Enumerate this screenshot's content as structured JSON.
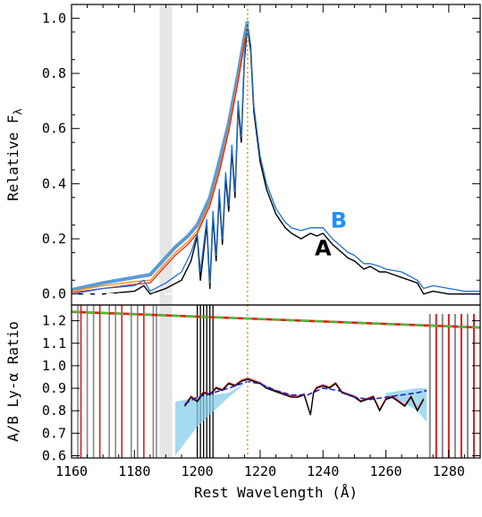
{
  "chart_data": [
    {
      "panel": "top",
      "type": "line",
      "title": "",
      "xlabel": "",
      "ylabel": "Relative F",
      "ylabel_sub": "λ",
      "xlim": [
        1160,
        1290
      ],
      "ylim": [
        -0.04,
        1.05
      ],
      "y_ticks": [
        0.0,
        0.2,
        0.4,
        0.6,
        0.8,
        1.0
      ],
      "y_tick_labels": [
        "0.0",
        "0.2",
        "0.4",
        "0.6",
        "0.8",
        "1.0"
      ],
      "shaded_band": [
        1188,
        1192
      ],
      "vline_x": 1216,
      "zero_line": 0.0,
      "series_labels": [
        {
          "text": "A",
          "x": 1240,
          "y": 0.14,
          "color": "#000000"
        },
        {
          "text": "B",
          "x": 1245,
          "y": 0.24,
          "color": "#1e90ff"
        }
      ],
      "series": [
        {
          "key": "thick_blue",
          "color": "#5b9bd5",
          "x": [
            1160,
            1170,
            1180,
            1185,
            1189,
            1193,
            1197,
            1200,
            1204,
            1207,
            1210,
            1213,
            1215,
            1216
          ],
          "y": [
            0.015,
            0.04,
            0.06,
            0.07,
            0.12,
            0.17,
            0.21,
            0.25,
            0.35,
            0.48,
            0.62,
            0.8,
            0.93,
            0.99
          ]
        },
        {
          "key": "orange",
          "color": "#ff8c00",
          "x": [
            1160,
            1170,
            1180,
            1185,
            1189,
            1193,
            1197,
            1200,
            1204,
            1207,
            1210,
            1213,
            1215,
            1216
          ],
          "y": [
            0.01,
            0.03,
            0.045,
            0.05,
            0.1,
            0.15,
            0.19,
            0.23,
            0.33,
            0.45,
            0.6,
            0.78,
            0.92,
            0.98
          ]
        },
        {
          "key": "red",
          "color": "#e41a1c",
          "x": [
            1160,
            1170,
            1180,
            1185,
            1189,
            1193,
            1197,
            1200,
            1204,
            1207,
            1210,
            1213,
            1215,
            1216
          ],
          "y": [
            0.005,
            0.02,
            0.035,
            0.04,
            0.09,
            0.14,
            0.18,
            0.22,
            0.32,
            0.44,
            0.59,
            0.77,
            0.91,
            0.97
          ]
        },
        {
          "key": "black",
          "color": "#000000",
          "x": [
            1160,
            1170,
            1180,
            1183,
            1185,
            1190,
            1195,
            1198,
            1200,
            1201,
            1203,
            1204,
            1205,
            1206,
            1207,
            1208,
            1209,
            1210,
            1211,
            1212,
            1213,
            1214,
            1215,
            1216,
            1217,
            1218,
            1220,
            1222,
            1225,
            1228,
            1230,
            1233,
            1236,
            1238,
            1240,
            1243,
            1245,
            1248,
            1250,
            1253,
            1255,
            1258,
            1260,
            1265,
            1270,
            1272,
            1275,
            1280,
            1285,
            1290
          ],
          "y": [
            0.0,
            0.0,
            0.01,
            0.03,
            0.0,
            0.02,
            0.05,
            0.12,
            0.21,
            0.05,
            0.25,
            0.02,
            0.28,
            0.12,
            0.36,
            0.18,
            0.42,
            0.3,
            0.52,
            0.35,
            0.68,
            0.55,
            0.85,
            0.97,
            0.88,
            0.66,
            0.48,
            0.38,
            0.29,
            0.24,
            0.22,
            0.2,
            0.22,
            0.21,
            0.22,
            0.18,
            0.16,
            0.13,
            0.12,
            0.09,
            0.1,
            0.08,
            0.08,
            0.06,
            0.04,
            0.0,
            0.01,
            0.0,
            0.0,
            0.0
          ]
        },
        {
          "key": "thin_blue",
          "color": "#1e6fd0",
          "x": [
            1160,
            1170,
            1180,
            1183,
            1185,
            1190,
            1195,
            1198,
            1200,
            1201,
            1203,
            1204,
            1205,
            1206,
            1207,
            1208,
            1209,
            1210,
            1211,
            1212,
            1213,
            1214,
            1215,
            1216,
            1217,
            1218,
            1220,
            1222,
            1225,
            1228,
            1230,
            1233,
            1236,
            1238,
            1240,
            1243,
            1245,
            1248,
            1250,
            1253,
            1255,
            1258,
            1260,
            1265,
            1270,
            1272,
            1275,
            1280,
            1285,
            1290
          ],
          "y": [
            0.0,
            0.02,
            0.03,
            0.05,
            0.01,
            0.04,
            0.08,
            0.15,
            0.22,
            0.08,
            0.27,
            0.04,
            0.3,
            0.14,
            0.38,
            0.2,
            0.44,
            0.32,
            0.54,
            0.37,
            0.7,
            0.57,
            0.87,
            0.98,
            0.9,
            0.68,
            0.5,
            0.4,
            0.31,
            0.26,
            0.24,
            0.23,
            0.24,
            0.24,
            0.24,
            0.2,
            0.18,
            0.15,
            0.14,
            0.11,
            0.11,
            0.1,
            0.09,
            0.08,
            0.05,
            0.02,
            0.03,
            0.02,
            0.01,
            0.01
          ]
        }
      ]
    },
    {
      "panel": "bottom",
      "type": "line",
      "title": "",
      "xlabel": "Rest Wavelength (Å)",
      "ylabel": "A/B Ly-α Ratio",
      "xlim": [
        1160,
        1290
      ],
      "ylim": [
        0.59,
        1.27
      ],
      "x_ticks": [
        1160,
        1180,
        1200,
        1220,
        1240,
        1260,
        1280
      ],
      "x_tick_labels": [
        "1160",
        "1180",
        "1200",
        "1220",
        "1240",
        "1260",
        "1280"
      ],
      "y_ticks": [
        0.6,
        0.7,
        0.8,
        0.9,
        1.0,
        1.1,
        1.2
      ],
      "y_tick_labels": [
        "0.6",
        "0.7",
        "0.8",
        "0.9",
        "1.0",
        "1.1",
        "1.2"
      ],
      "shaded_band": [
        1188,
        1192
      ],
      "vline_x": 1216,
      "reference_lines": [
        {
          "color": "#e41a1c",
          "x": [
            1160,
            1290
          ],
          "y": [
            1.24,
            1.17
          ]
        },
        {
          "color": "#33cc33",
          "dashed": true,
          "x": [
            1160,
            1290
          ],
          "y": [
            1.24,
            1.17
          ]
        }
      ],
      "fill_region": {
        "color": "#87ceeb",
        "x": [
          1193,
          1200,
          1210,
          1216,
          1216,
          1210,
          1200,
          1193
        ],
        "y": [
          0.6,
          0.73,
          0.86,
          0.93,
          0.93,
          0.88,
          0.86,
          0.84
        ]
      },
      "fill_region_right": {
        "color": "#87ceeb",
        "x": [
          1260,
          1265,
          1270,
          1273,
          1273,
          1270,
          1265,
          1260
        ],
        "y": [
          0.86,
          0.84,
          0.8,
          0.75,
          0.9,
          0.9,
          0.89,
          0.88
        ]
      },
      "smooth_curve": {
        "color": "#2020c0",
        "x": [
          1196,
          1200,
          1205,
          1210,
          1214,
          1216,
          1220,
          1225,
          1230,
          1235,
          1240,
          1245,
          1250,
          1255,
          1260,
          1265,
          1270,
          1273
        ],
        "y": [
          0.83,
          0.86,
          0.88,
          0.9,
          0.92,
          0.93,
          0.92,
          0.89,
          0.87,
          0.87,
          0.9,
          0.89,
          0.86,
          0.85,
          0.86,
          0.87,
          0.88,
          0.89
        ]
      },
      "ratio_series": {
        "color": "#000000",
        "x": [
          1196,
          1198,
          1200,
          1202,
          1204,
          1206,
          1208,
          1210,
          1212,
          1214,
          1216,
          1218,
          1220,
          1222,
          1224,
          1226,
          1228,
          1230,
          1232,
          1234,
          1236,
          1237,
          1238,
          1240,
          1242,
          1244,
          1246,
          1248,
          1250,
          1252,
          1254,
          1256,
          1258,
          1260,
          1262,
          1264,
          1266,
          1268,
          1270,
          1272
        ],
        "y": [
          0.82,
          0.86,
          0.84,
          0.88,
          0.87,
          0.9,
          0.89,
          0.92,
          0.91,
          0.93,
          0.94,
          0.93,
          0.92,
          0.9,
          0.89,
          0.88,
          0.87,
          0.86,
          0.86,
          0.87,
          0.78,
          0.88,
          0.9,
          0.91,
          0.9,
          0.92,
          0.88,
          0.87,
          0.86,
          0.84,
          0.85,
          0.86,
          0.8,
          0.85,
          0.86,
          0.84,
          0.82,
          0.86,
          0.8,
          0.85
        ]
      },
      "noise_spikes_left": [
        1162,
        1163,
        1165,
        1167,
        1169,
        1172,
        1174,
        1176,
        1179,
        1181,
        1183,
        1186,
        1187
      ],
      "noise_spikes_right": [
        1274,
        1276,
        1278,
        1280,
        1282,
        1284,
        1286,
        1288
      ],
      "dense_spikes": [
        1200,
        1201,
        1202,
        1203,
        1204,
        1205
      ]
    }
  ]
}
